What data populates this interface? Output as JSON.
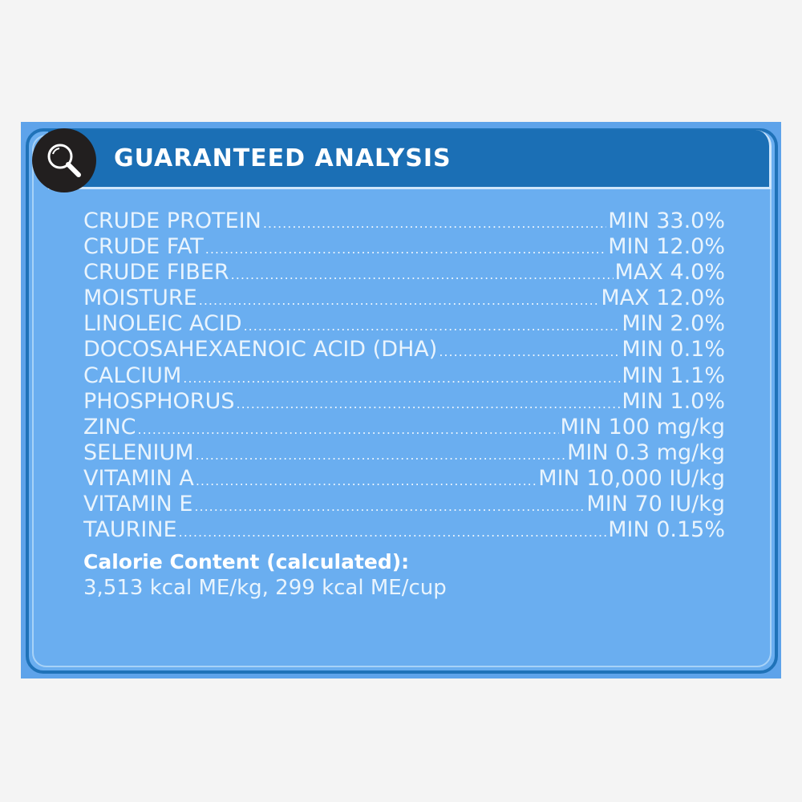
{
  "header": {
    "title": "GUARANTEED ANALYSIS",
    "icon": "magnifier-icon"
  },
  "analysis": [
    {
      "label": "CRUDE PROTEIN",
      "value": "MIN 33.0%"
    },
    {
      "label": "CRUDE FAT",
      "value": "MIN 12.0%"
    },
    {
      "label": "CRUDE FIBER",
      "value": "MAX 4.0%"
    },
    {
      "label": "MOISTURE",
      "value": "MAX 12.0%"
    },
    {
      "label": "LINOLEIC ACID",
      "value": "MIN 2.0%"
    },
    {
      "label": "DOCOSAHEXAENOIC ACID (DHA)",
      "value": "MIN 0.1%"
    },
    {
      "label": "CALCIUM",
      "value": "MIN 1.1%"
    },
    {
      "label": "PHOSPHORUS",
      "value": "MIN 1.0%"
    },
    {
      "label": "ZINC",
      "value": "MIN 100 mg/kg"
    },
    {
      "label": "SELENIUM",
      "value": "MIN 0.3 mg/kg"
    },
    {
      "label": "VITAMIN A",
      "value": "MIN 10,000 IU/kg"
    },
    {
      "label": "VITAMIN E",
      "value": "MIN 70 IU/kg"
    },
    {
      "label": "TAURINE",
      "value": "MIN 0.15%"
    }
  ],
  "calorie": {
    "title": "Calorie Content (calculated):",
    "value": "3,513 kcal ME/kg, 299 kcal ME/cup"
  },
  "colors": {
    "panel": "#5ea3ea",
    "header": "#1b6fb5",
    "text": "#e9f4fd",
    "badge": "#221f1f"
  }
}
